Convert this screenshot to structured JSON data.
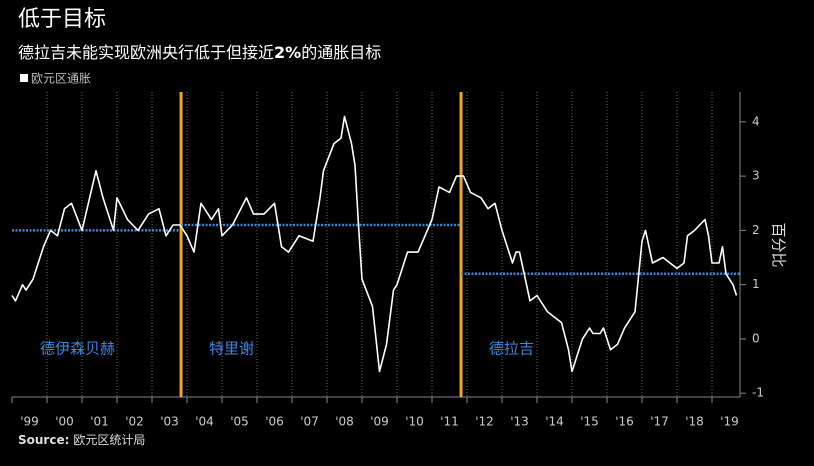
{
  "chart_data": {
    "type": "line",
    "title": "低于目标",
    "subtitle": [
      "德拉吉未能实现欧洲央行低于但接近",
      "2%",
      "的通胀目标"
    ],
    "ylabel": "百分比",
    "source_label": "Source:",
    "source": "欧元区统计局",
    "xlim": [
      1999,
      2019.8
    ],
    "ylim": [
      -1.07,
      4.55
    ],
    "yticks": [
      -1,
      0,
      1,
      2,
      3,
      4
    ],
    "xticks": [
      {
        "value": 1999,
        "label": "'99"
      },
      {
        "value": 2000,
        "label": "'00"
      },
      {
        "value": 2001,
        "label": "'01"
      },
      {
        "value": 2002,
        "label": "'02"
      },
      {
        "value": 2003,
        "label": "'03"
      },
      {
        "value": 2004,
        "label": "'04"
      },
      {
        "value": 2005,
        "label": "'05"
      },
      {
        "value": 2006,
        "label": "'06"
      },
      {
        "value": 2007,
        "label": "'07"
      },
      {
        "value": 2008,
        "label": "'08"
      },
      {
        "value": 2009,
        "label": "'09"
      },
      {
        "value": 2010,
        "label": "'10"
      },
      {
        "value": 2011,
        "label": "'11"
      },
      {
        "value": 2012,
        "label": "'12"
      },
      {
        "value": 2013,
        "label": "'13"
      },
      {
        "value": 2014,
        "label": "'14"
      },
      {
        "value": 2015,
        "label": "'15"
      },
      {
        "value": 2016,
        "label": "'16"
      },
      {
        "value": 2017,
        "label": "'17"
      },
      {
        "value": 2018,
        "label": "'18"
      },
      {
        "value": 2019,
        "label": "'19"
      }
    ],
    "series": [
      {
        "name": "欧元区通胀",
        "color": "#ffffff",
        "x": [
          1999.0,
          1999.1,
          1999.3,
          1999.4,
          1999.6,
          1999.9,
          2000.1,
          2000.3,
          2000.5,
          2000.7,
          2001.0,
          2001.4,
          2001.6,
          2001.9,
          2002.0,
          2002.3,
          2002.6,
          2002.9,
          2003.2,
          2003.4,
          2003.6,
          2003.8,
          2004.0,
          2004.2,
          2004.4,
          2004.7,
          2004.9,
          2005.0,
          2005.3,
          2005.7,
          2005.9,
          2006.2,
          2006.5,
          2006.7,
          2006.9,
          2007.2,
          2007.6,
          2007.8,
          2007.9,
          2008.2,
          2008.4,
          2008.5,
          2008.7,
          2008.8,
          2008.9,
          2009.0,
          2009.3,
          2009.5,
          2009.7,
          2009.9,
          2010.0,
          2010.3,
          2010.6,
          2010.8,
          2011.0,
          2011.2,
          2011.5,
          2011.7,
          2011.9,
          2012.1,
          2012.4,
          2012.6,
          2012.8,
          2013.0,
          2013.3,
          2013.4,
          2013.5,
          2013.8,
          2014.0,
          2014.3,
          2014.5,
          2014.7,
          2014.9,
          2015.0,
          2015.3,
          2015.5,
          2015.6,
          2015.8,
          2015.9,
          2016.1,
          2016.3,
          2016.5,
          2016.8,
          2017.0,
          2017.1,
          2017.3,
          2017.6,
          2017.8,
          2018.0,
          2018.2,
          2018.3,
          2018.5,
          2018.8,
          2018.9,
          2019.0,
          2019.2,
          2019.3,
          2019.4,
          2019.6,
          2019.7
        ],
        "values": [
          0.8,
          0.7,
          1.0,
          0.9,
          1.1,
          1.7,
          2.0,
          1.9,
          2.4,
          2.5,
          2.0,
          3.1,
          2.6,
          2.0,
          2.6,
          2.2,
          2.0,
          2.3,
          2.4,
          1.9,
          2.1,
          2.1,
          1.9,
          1.6,
          2.5,
          2.2,
          2.4,
          1.9,
          2.1,
          2.6,
          2.3,
          2.3,
          2.5,
          1.7,
          1.6,
          1.9,
          1.8,
          2.6,
          3.1,
          3.6,
          3.7,
          4.1,
          3.6,
          3.2,
          2.1,
          1.1,
          0.6,
          -0.6,
          -0.1,
          0.9,
          1.0,
          1.6,
          1.6,
          1.9,
          2.2,
          2.8,
          2.7,
          3.0,
          3.0,
          2.7,
          2.6,
          2.4,
          2.5,
          2.0,
          1.4,
          1.6,
          1.6,
          0.7,
          0.8,
          0.5,
          0.4,
          0.3,
          -0.2,
          -0.6,
          0.0,
          0.2,
          0.1,
          0.1,
          0.2,
          -0.2,
          -0.1,
          0.2,
          0.5,
          1.8,
          2.0,
          1.4,
          1.5,
          1.4,
          1.3,
          1.4,
          1.9,
          2.0,
          2.2,
          1.9,
          1.4,
          1.4,
          1.7,
          1.2,
          1.0,
          0.8
        ]
      }
    ],
    "periods": [
      {
        "name": "德伊森贝赫",
        "start": 1999,
        "end": 2003.83,
        "average": 2.0
      },
      {
        "name": "特里谢",
        "start": 2003.83,
        "end": 2011.83,
        "average": 2.1
      },
      {
        "name": "德拉吉",
        "start": 2011.83,
        "end": 2019.8,
        "average": 1.2
      }
    ],
    "average_color": "#3d86e0",
    "boundary_color": "#f5a623",
    "grid": true
  }
}
